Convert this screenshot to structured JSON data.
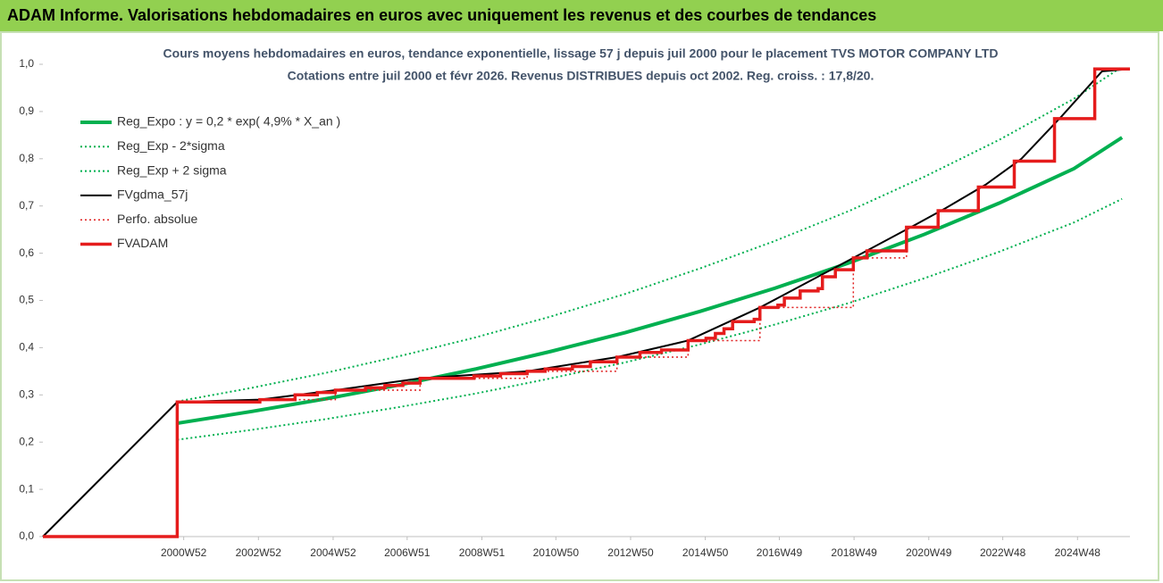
{
  "header": {
    "title": "ADAM Informe. Valorisations hebdomadaires en euros avec uniquement les revenus et des courbes de tendances"
  },
  "chart_data": {
    "type": "line",
    "title": "Cours moyens hebdomadaires en euros, tendance exponentielle, lissage 57 j depuis juil 2000 pour le placement TVS MOTOR COMPANY LTD",
    "subtitle": "Cotations entre juil 2000 et févr 2026.  Revenus DISTRIBUES depuis oct 2002. Reg. croiss. : 17,8/20.",
    "xlim": [
      "1997W12",
      "2026W17"
    ],
    "xticks": [
      "2000W52",
      "2002W52",
      "2004W52",
      "2006W51",
      "2008W51",
      "2010W50",
      "2012W50",
      "2014W50",
      "2016W49",
      "2018W49",
      "2020W49",
      "2022W48",
      "2024W48"
    ],
    "ylim": [
      0,
      1
    ],
    "yticks": [
      {
        "value": 0,
        "label": "0,0"
      },
      {
        "value": 0.1,
        "label": "0,1"
      },
      {
        "value": 0.2,
        "label": "0,2"
      },
      {
        "value": 0.3,
        "label": "0,3"
      },
      {
        "value": 0.4,
        "label": "0,4"
      },
      {
        "value": 0.5,
        "label": "0,5"
      },
      {
        "value": 0.6,
        "label": "0,6"
      },
      {
        "value": 0.7,
        "label": "0,7"
      },
      {
        "value": 0.8,
        "label": "0,8"
      },
      {
        "value": 0.9,
        "label": "0,9"
      },
      {
        "value": 1,
        "label": "1,0"
      }
    ],
    "legend": "upper left",
    "series": [
      {
        "name": "Reg_Expo : y = 0,2 * exp( 4,9% *  X_an )",
        "color": "#00b050",
        "width": 4,
        "dash": "solid",
        "drawstyle": "linear",
        "x": [
          "2000W43",
          "2002W43",
          "2004W43",
          "2006W43",
          "2008W43",
          "2010W43",
          "2012W43",
          "2014W43",
          "2016W43",
          "2018W43",
          "2020W43",
          "2022W43",
          "2024W43",
          "2026W06"
        ],
        "values": [
          0.24,
          0.265,
          0.292,
          0.322,
          0.355,
          0.392,
          0.432,
          0.477,
          0.526,
          0.58,
          0.64,
          0.706,
          0.779,
          0.845
        ]
      },
      {
        "name": "Reg_Exp - 2*sigma",
        "color": "#00b050",
        "width": 2,
        "dash": "dotted",
        "drawstyle": "linear",
        "x": [
          "2000W43",
          "2002W43",
          "2004W43",
          "2006W43",
          "2008W43",
          "2010W43",
          "2012W43",
          "2014W43",
          "2016W43",
          "2018W43",
          "2020W43",
          "2022W43",
          "2024W43",
          "2026W06"
        ],
        "values": [
          0.205,
          0.226,
          0.249,
          0.275,
          0.303,
          0.335,
          0.369,
          0.407,
          0.449,
          0.495,
          0.547,
          0.603,
          0.665,
          0.715
        ]
      },
      {
        "name": "Reg_Exp + 2 sigma",
        "color": "#00b050",
        "width": 2,
        "dash": "dotted",
        "drawstyle": "linear",
        "x": [
          "2000W43",
          "2002W43",
          "2004W43",
          "2006W43",
          "2008W43",
          "2010W43",
          "2012W43",
          "2014W43",
          "2016W43",
          "2018W43",
          "2020W43",
          "2022W43",
          "2024W43",
          "2026W06"
        ],
        "values": [
          0.286,
          0.315,
          0.347,
          0.383,
          0.422,
          0.466,
          0.514,
          0.568,
          0.626,
          0.69,
          0.762,
          0.84,
          0.927,
          0.995
        ]
      },
      {
        "name": "FVgdma_57j",
        "color": "#000000",
        "width": 2,
        "dash": "solid",
        "drawstyle": "linear",
        "x": [
          "1997W12",
          "2000W43",
          "2003W02",
          "2005W03",
          "2007W17",
          "2010W10",
          "2012W31",
          "2014W26",
          "2016W22",
          "2018W48",
          "2020W30",
          "2021W20",
          "2022W24",
          "2023W22",
          "2024W26",
          "2025W30",
          "2026W17"
        ],
        "values": [
          0,
          0.285,
          0.29,
          0.31,
          0.335,
          0.35,
          0.38,
          0.415,
          0.485,
          0.59,
          0.66,
          0.695,
          0.745,
          0.8,
          0.89,
          0.985,
          0.99
        ]
      },
      {
        "name": "Perfo. absolue",
        "color": "#e02020",
        "width": 1.5,
        "dash": "dotted",
        "drawstyle": "steps-post",
        "x": [
          "1997W12",
          "2000W43",
          "2003W02",
          "2005W03",
          "2007W17",
          "2010W10",
          "2012W31",
          "2014W26",
          "2016W22",
          "2018W48",
          "2020W18",
          "2021W10",
          "2022W14",
          "2023W12",
          "2024W16",
          "2025W20",
          "2026W17"
        ],
        "values": [
          0,
          0.285,
          0.29,
          0.31,
          0.335,
          0.35,
          0.38,
          0.415,
          0.485,
          0.59,
          0.655,
          0.69,
          0.74,
          0.795,
          0.885,
          0.99,
          0.99
        ]
      },
      {
        "name": "FVADAM",
        "color": "#e51c1c",
        "width": 3.5,
        "dash": "solid",
        "drawstyle": "steps-post",
        "x": [
          "1997W12",
          "2000W43",
          "2003W02",
          "2003W51",
          "2004W30",
          "2005W03",
          "2005W45",
          "2006W20",
          "2006W45",
          "2007W17",
          "2008W40",
          "2009W25",
          "2010W10",
          "2010W35",
          "2011W21",
          "2011W46",
          "2012W31",
          "2013W11",
          "2013W41",
          "2014W26",
          "2014W51",
          "2015W12",
          "2015W24",
          "2015W36",
          "2016W14",
          "2016W22",
          "2016W47",
          "2017W04",
          "2017W26",
          "2017W51",
          "2018W05",
          "2018W23",
          "2018W48",
          "2019W15",
          "2020W18",
          "2021W10",
          "2022W14",
          "2023W12",
          "2024W16",
          "2025W20",
          "2026W17"
        ],
        "values": [
          0,
          0.285,
          0.29,
          0.3,
          0.305,
          0.31,
          0.315,
          0.32,
          0.325,
          0.335,
          0.34,
          0.345,
          0.35,
          0.355,
          0.36,
          0.37,
          0.38,
          0.39,
          0.395,
          0.415,
          0.42,
          0.43,
          0.44,
          0.455,
          0.46,
          0.485,
          0.49,
          0.505,
          0.52,
          0.525,
          0.55,
          0.565,
          0.59,
          0.605,
          0.655,
          0.69,
          0.74,
          0.795,
          0.885,
          0.99,
          0.99
        ]
      }
    ]
  }
}
